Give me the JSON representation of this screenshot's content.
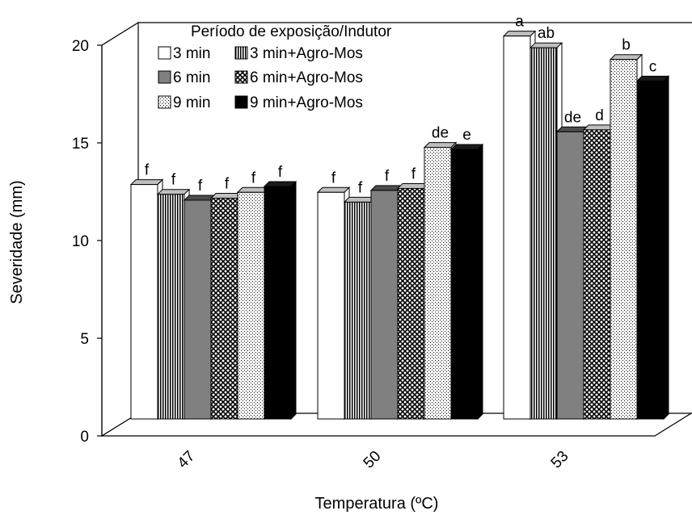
{
  "chart_data": {
    "type": "bar",
    "title": "",
    "xlabel": "Temperatura (ºC)",
    "ylabel": "Severidade (mm)",
    "categories": [
      "47",
      "50",
      "53"
    ],
    "ylim": [
      0,
      20
    ],
    "yticks": [
      "0",
      "5",
      "10",
      "15",
      "20"
    ],
    "grid": false,
    "legend": {
      "title": "Período de exposição/Indutor",
      "position": "top-left"
    },
    "series": [
      {
        "name": "3 min",
        "values": [
          12.0,
          11.6,
          19.6
        ],
        "labels": [
          "f",
          "f",
          "a"
        ],
        "fill": "white"
      },
      {
        "name": "3 min+Agro-Mos",
        "values": [
          11.5,
          11.1,
          19.0
        ],
        "labels": [
          "f",
          "f",
          "ab"
        ],
        "fill": "vstripes"
      },
      {
        "name": "6 min",
        "values": [
          11.2,
          11.7,
          14.7
        ],
        "labels": [
          "f",
          "f",
          "de"
        ],
        "fill": "gray"
      },
      {
        "name": "6 min+Agro-Mos",
        "values": [
          11.3,
          11.8,
          14.8
        ],
        "labels": [
          "f",
          "f",
          "d"
        ],
        "fill": "crosshatch"
      },
      {
        "name": "9 min",
        "values": [
          11.6,
          13.9,
          18.4
        ],
        "labels": [
          "f",
          "de",
          "b"
        ],
        "fill": "dots"
      },
      {
        "name": "9 min+Agro-Mos",
        "values": [
          11.9,
          13.8,
          17.3
        ],
        "labels": [
          "f",
          "e",
          "c"
        ],
        "fill": "black"
      }
    ]
  }
}
